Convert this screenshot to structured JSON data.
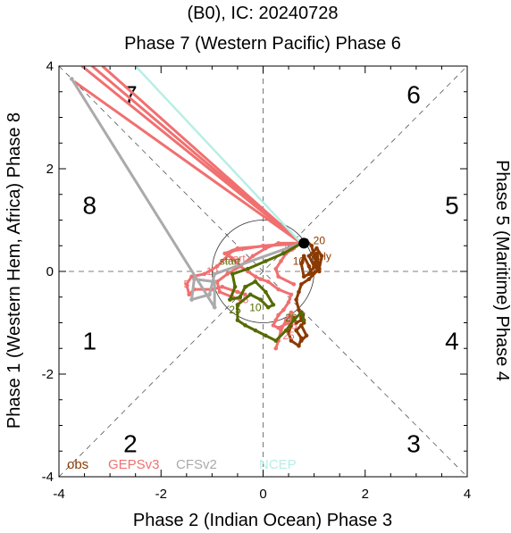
{
  "chart_data": {
    "type": "line",
    "title": "(B0), IC: 20240728",
    "top_label": "Phase 7 (Western Pacific) Phase 6",
    "xlabel": "Phase 2 (Indian Ocean) Phase 3",
    "left_label": "Phase 1 (Western Hem, Africa) Phase 8",
    "right_label": "Phase 5 (Maritime) Phase 4",
    "xlim": [
      -4,
      4
    ],
    "ylim": [
      -4,
      4
    ],
    "xticks": [
      "-4",
      "-2",
      "0",
      "2",
      "4"
    ],
    "yticks": [
      "-4",
      "-2",
      "0",
      "2",
      "4"
    ],
    "phase_numbers": [
      {
        "label": "1",
        "x": -3.4,
        "y": -1.35
      },
      {
        "label": "2",
        "x": -2.6,
        "y": -3.35
      },
      {
        "label": "3",
        "x": 2.95,
        "y": -3.35
      },
      {
        "label": "4",
        "x": 3.7,
        "y": -1.35
      },
      {
        "label": "5",
        "x": 3.7,
        "y": 1.3
      },
      {
        "label": "6",
        "x": 2.95,
        "y": 3.45
      },
      {
        "label": "7",
        "x": -2.6,
        "y": 3.45
      },
      {
        "label": "8",
        "x": -3.4,
        "y": 1.3
      }
    ],
    "legend": [
      {
        "label": "obs",
        "color": "#8B3A00"
      },
      {
        "label": "GEPSv3",
        "color": "#F07070"
      },
      {
        "label": "CFSv2",
        "color": "#AAAAAA"
      },
      {
        "label": "NCEP",
        "color": "#B8EEE6"
      }
    ],
    "series": [
      {
        "name": "obs",
        "color": "#8B3A00",
        "x": [
          0.75,
          0.85,
          0.95,
          1.0,
          1.05,
          1.1,
          1.0,
          0.9,
          1.05,
          1.15,
          1.1,
          0.95,
          0.9,
          0.8,
          0.75,
          0.8,
          0.9,
          1.0,
          1.05,
          1.1,
          0.9,
          0.75,
          0.7,
          0.65,
          0.7,
          0.75,
          0.8,
          0.78,
          0.75,
          0.65,
          0.6,
          0.55,
          0.5,
          0.55,
          0.7,
          0.75,
          0.65,
          0.75,
          0.85,
          0.75
        ],
        "y": [
          0.55,
          0.6,
          0.5,
          0.3,
          0.15,
          0.0,
          0.1,
          0.3,
          0.45,
          0.3,
          0.05,
          -0.05,
          0.1,
          0.3,
          0.15,
          -0.1,
          -0.05,
          0.1,
          0.35,
          0.05,
          -0.15,
          -0.25,
          -0.4,
          -0.55,
          -0.75,
          -0.9,
          -1.0,
          -0.85,
          -0.95,
          -1.0,
          -0.9,
          -1.05,
          -1.2,
          -1.35,
          -1.45,
          -1.3,
          -1.15,
          -1.05,
          -1.25,
          -1.35
        ],
        "labels": [
          {
            "text": "20",
            "x": 1.1,
            "y": 0.6
          },
          {
            "text": "10",
            "x": 0.7,
            "y": 0.2
          },
          {
            "text": "July",
            "x": 1.15,
            "y": 0.3
          }
        ]
      },
      {
        "name": "GEPSv3 (mean)",
        "color": "#F07070",
        "x": [
          0.75,
          -0.5,
          -0.75,
          -0.6,
          -0.45,
          -0.3,
          -0.15,
          -0.05,
          0.1,
          0.3,
          0.55,
          0.5,
          0.4,
          0.3,
          0.25,
          0.2,
          0.3,
          0.5,
          0.55,
          0.55,
          0.45,
          0.35,
          0.3,
          0.25
        ],
        "y": [
          0.55,
          0.45,
          0.35,
          0.25,
          0.1,
          0.0,
          -0.1,
          -0.15,
          -0.2,
          -0.35,
          -0.45,
          -0.6,
          -0.75,
          -0.85,
          -0.95,
          -1.05,
          -1.1,
          -1.0,
          -0.9,
          -0.8,
          -0.95,
          -1.15,
          -1.35,
          -1.5
        ],
        "labels": [
          {
            "text": "start",
            "x": -0.55,
            "y": 0.25
          },
          {
            "text": "15",
            "x": 0.55,
            "y": -1.05
          },
          {
            "text": "25",
            "x": 0.5,
            "y": -1.25
          }
        ]
      },
      {
        "name": "GEPSv3 (member)",
        "color": "#F07070",
        "x": [
          0.75,
          0.0,
          -0.6,
          -0.9,
          -1.15,
          -1.4,
          -1.5,
          -1.45,
          -1.35,
          -1.0,
          -0.8,
          -0.5,
          -0.35
        ],
        "y": [
          0.55,
          0.5,
          0.4,
          0.1,
          -0.05,
          -0.1,
          -0.25,
          -0.45,
          -0.35,
          -0.35,
          -0.3,
          -0.4,
          -0.45
        ],
        "labels": [
          {
            "text": "5",
            "x": -1.5,
            "y": -0.25
          }
        ]
      },
      {
        "name": "GEPSv3 (member)",
        "color": "#F07070",
        "x": [
          0.75,
          0.3,
          0.05,
          -0.2,
          -0.45,
          -0.7,
          -0.9,
          -0.85,
          -0.6,
          -0.45
        ],
        "y": [
          0.55,
          0.55,
          0.45,
          0.3,
          0.1,
          -0.05,
          -0.2,
          -0.4,
          -0.5,
          -0.55
        ],
        "labels": [
          {
            "text": "10",
            "x": -1.0,
            "y": 0.0
          },
          {
            "text": "15",
            "x": -0.4,
            "y": -0.55
          }
        ]
      },
      {
        "name": "GEPSv3 (member)",
        "color": "#F07070",
        "x": [
          0.75,
          0.6,
          0.45,
          0.35,
          0.25,
          0.3,
          0.6
        ],
        "y": [
          0.55,
          0.45,
          0.35,
          0.2,
          0.05,
          -0.1,
          -0.25
        ],
        "labels": [
          {
            "text": "15",
            "x": 0.5,
            "y": 0.45
          }
        ]
      },
      {
        "name": "GEPSv3 (ensemble)",
        "color": "#F07070",
        "x": [
          0.75,
          -3.55
        ],
        "y": [
          0.55,
          4.0
        ],
        "labels": []
      },
      {
        "name": "GEPSv3 (ensemble)",
        "color": "#F07070",
        "x": [
          0.75,
          -3.35
        ],
        "y": [
          0.55,
          4.0
        ],
        "labels": []
      },
      {
        "name": "GEPSv3 (ensemble)",
        "color": "#F07070",
        "x": [
          0.75,
          -3.15
        ],
        "y": [
          0.55,
          4.0
        ],
        "labels": []
      },
      {
        "name": "GEPSv3 (ensemble)",
        "color": "#F07070",
        "x": [
          0.75,
          -3.7
        ],
        "y": [
          0.55,
          3.7
        ],
        "labels": []
      },
      {
        "name": "CFSv2",
        "color": "#AAAAAA",
        "x": [
          0.75,
          -0.95,
          -1.05,
          -1.4,
          -1.35,
          -0.95,
          -0.95,
          -3.75
        ],
        "y": [
          0.55,
          -0.05,
          -0.45,
          -0.55,
          -0.15,
          -0.2,
          -0.7,
          3.75
        ],
        "labels": []
      },
      {
        "name": "NCEP",
        "color": "#B8EEE6",
        "x": [
          0.75,
          -2.5
        ],
        "y": [
          0.55,
          4.0
        ],
        "labels": []
      },
      {
        "name": "GEPSv3 (mean 2)",
        "color": "#556B00",
        "x": [
          0.75,
          0.4,
          0.05,
          -0.3,
          -0.6,
          -0.55,
          -0.65,
          -0.45,
          -0.35,
          -0.15,
          0.05,
          0.2,
          0.1,
          -0.05,
          -0.25,
          -0.5,
          -0.5,
          -0.35,
          -0.15,
          0.05,
          0.25,
          0.45,
          0.6,
          0.75,
          0.8
        ],
        "y": [
          0.55,
          0.35,
          0.2,
          0.05,
          -0.05,
          -0.3,
          -0.55,
          -0.5,
          -0.3,
          -0.2,
          -0.4,
          -0.65,
          -0.7,
          -0.55,
          -0.45,
          -0.65,
          -0.95,
          -1.05,
          -1.15,
          -1.25,
          -1.35,
          -1.15,
          -0.95,
          -0.8,
          -0.95
        ],
        "labels": [
          {
            "text": "start",
            "x": -0.65,
            "y": 0.2
          },
          {
            "text": "10",
            "x": -0.15,
            "y": -0.7
          },
          {
            "text": "25",
            "x": -0.55,
            "y": -0.75
          },
          {
            "text": "20",
            "x": 0.55,
            "y": -0.9
          }
        ]
      }
    ]
  }
}
